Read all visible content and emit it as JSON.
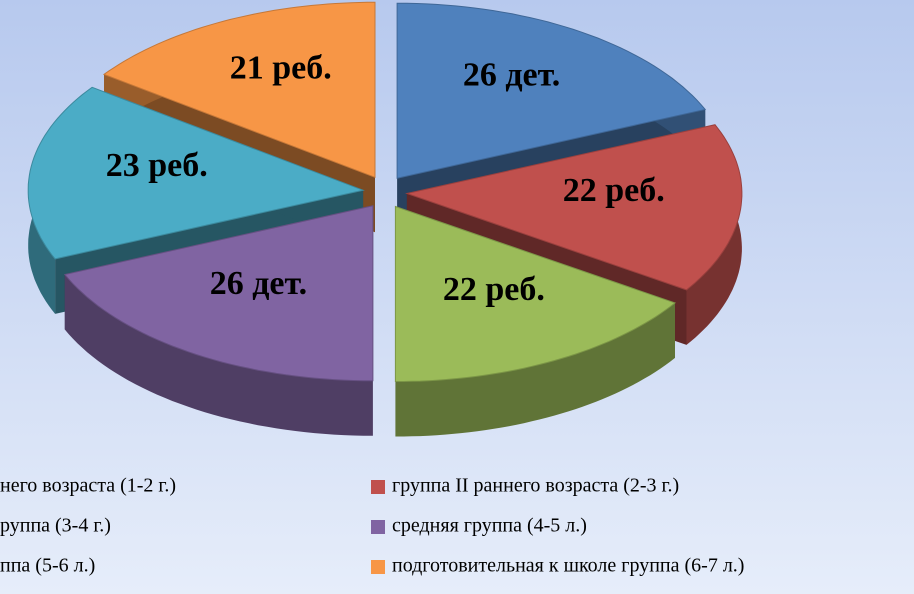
{
  "chart_data": {
    "type": "pie",
    "categories": [
      "него возраста (1-2 г.)",
      "группа II раннего возраста (2-3 г.)",
      "руппа (3-4 г.)",
      "средняя группа (4-5 л.)",
      "ппа (5-6 л.)",
      "подготовительная к школе группа (6-7 л.)"
    ],
    "values": [
      26,
      22,
      22,
      26,
      23,
      21
    ],
    "value_labels": [
      "26 дет.",
      "22 реб.",
      "22 реб.",
      "26 дет.",
      "23 реб.",
      "21 реб."
    ],
    "colors": [
      "#4f81bd",
      "#c0504d",
      "#9bbb59",
      "#8064a2",
      "#4bacc6",
      "#f79646"
    ]
  }
}
